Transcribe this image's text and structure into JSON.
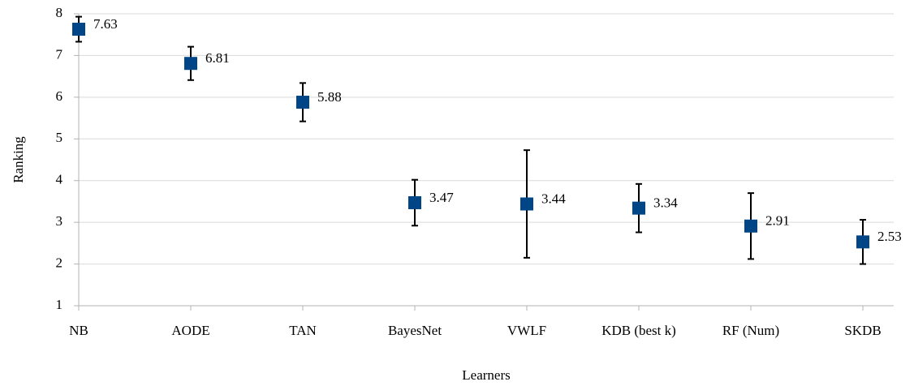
{
  "chart_data": {
    "type": "errorpoint",
    "x_label": "Learners",
    "y_label": "Ranking",
    "categories": [
      "NB",
      "AODE",
      "TAN",
      "BayesNet",
      "VWLF",
      "KDB (best k)",
      "RF (Num)",
      "SKDB"
    ],
    "series": [
      {
        "name": "Ranking",
        "color": "#004586",
        "values": [
          7.63,
          6.81,
          5.88,
          3.47,
          3.44,
          3.34,
          2.91,
          2.53
        ],
        "errors": [
          0.3,
          0.4,
          0.46,
          0.55,
          1.29,
          0.58,
          0.79,
          0.53
        ]
      }
    ],
    "ylim": [
      1,
      8
    ],
    "yticks": [
      1,
      2,
      3,
      4,
      5,
      6,
      7,
      8
    ],
    "grid": true
  }
}
